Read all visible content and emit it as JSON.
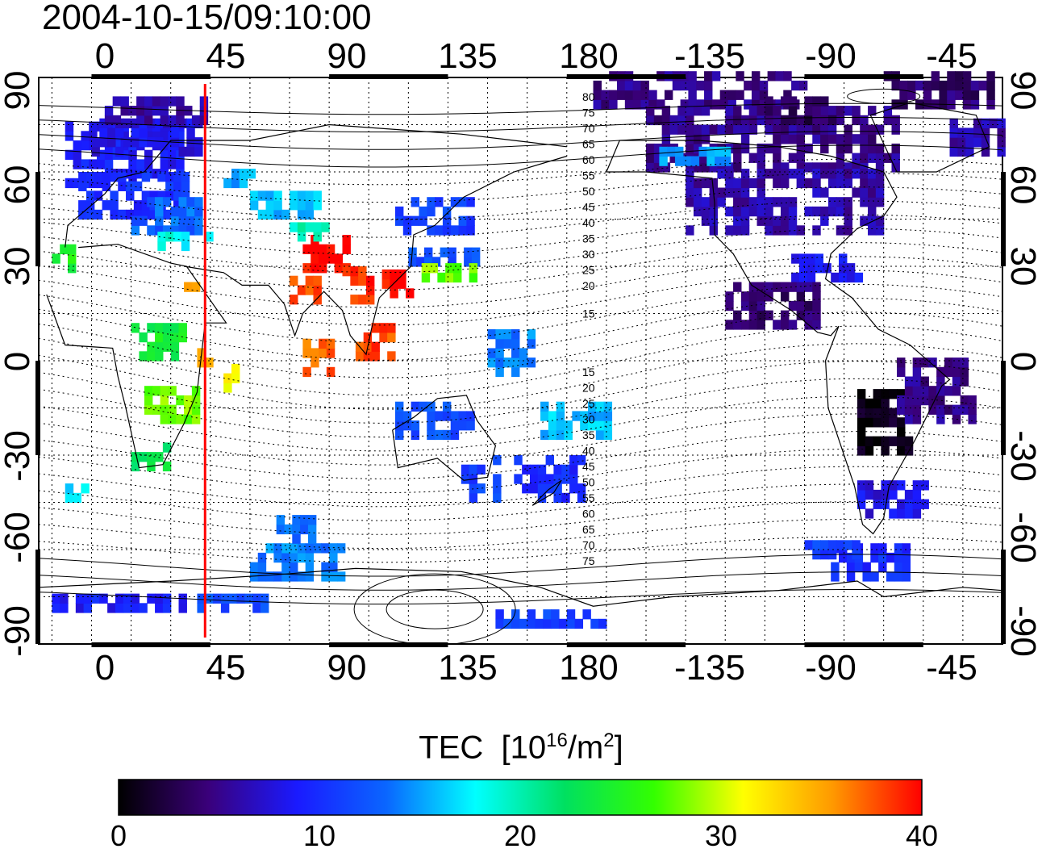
{
  "title": "2004-10-15/09:10:00",
  "x_tick_labels": [
    "0",
    "45",
    "90",
    "135",
    "180",
    "-135",
    "-90",
    "-45"
  ],
  "y_tick_labels": [
    "90",
    "60",
    "30",
    "0",
    "-30",
    "-60",
    "-90"
  ],
  "colorbar": {
    "title_prefix": "TEC",
    "title_unit_open": "[10",
    "title_unit_exp": "16",
    "title_unit_mid": "/m",
    "title_unit_exp2": "2",
    "title_unit_close": "]",
    "ticks": [
      "0",
      "10",
      "20",
      "30",
      "40"
    ],
    "range": [
      0,
      40
    ],
    "colors": [
      "#000000",
      "#3a007a",
      "#1a1aff",
      "#0a66ff",
      "#00ffff",
      "#00e060",
      "#33ff00",
      "#ffff00",
      "#ff9900",
      "#ff0000"
    ]
  },
  "marker_line": {
    "longitude": 43,
    "color": "#ff0000"
  },
  "contour_labels_north": [
    "80",
    "75",
    "70",
    "65",
    "60",
    "55",
    "50",
    "45",
    "40",
    "35",
    "30",
    "25",
    "20",
    "15"
  ],
  "contour_labels_south": [
    "15",
    "20",
    "25",
    "30",
    "35",
    "40",
    "45",
    "50",
    "55",
    "60",
    "65",
    "70",
    "75"
  ],
  "map": {
    "lon_range": [
      -20,
      345
    ],
    "lat_range": [
      -90,
      90
    ],
    "cells": [
      {
        "lon": -10,
        "lat": 55,
        "w": 45,
        "h": 20,
        "tec": 9
      },
      {
        "lon": -5,
        "lat": 45,
        "w": 40,
        "h": 15,
        "tec": 10
      },
      {
        "lon": 0,
        "lat": 65,
        "w": 40,
        "h": 10,
        "tec": 8
      },
      {
        "lon": 5,
        "lat": 75,
        "w": 40,
        "h": 8,
        "tec": 6
      },
      {
        "lon": 15,
        "lat": 40,
        "w": 25,
        "h": 10,
        "tec": 13
      },
      {
        "lon": 25,
        "lat": 35,
        "w": 20,
        "h": 5,
        "tec": 18
      },
      {
        "lon": -15,
        "lat": 28,
        "w": 8,
        "h": 8,
        "tec": 25
      },
      {
        "lon": 35,
        "lat": 22,
        "w": 6,
        "h": 6,
        "tec": 35
      },
      {
        "lon": 80,
        "lat": 28,
        "w": 16,
        "h": 10,
        "tec": 40
      },
      {
        "lon": 75,
        "lat": 18,
        "w": 10,
        "h": 8,
        "tec": 38
      },
      {
        "lon": 95,
        "lat": 18,
        "w": 10,
        "h": 10,
        "tec": 39
      },
      {
        "lon": 60,
        "lat": 45,
        "w": 25,
        "h": 8,
        "tec": 16
      },
      {
        "lon": 50,
        "lat": 55,
        "w": 15,
        "h": 5,
        "tec": 15
      },
      {
        "lon": 75,
        "lat": 38,
        "w": 15,
        "h": 5,
        "tec": 20
      },
      {
        "lon": 115,
        "lat": 40,
        "w": 30,
        "h": 12,
        "tec": 11
      },
      {
        "lon": 120,
        "lat": 30,
        "w": 25,
        "h": 6,
        "tec": 12
      },
      {
        "lon": 125,
        "lat": 25,
        "w": 20,
        "h": 4,
        "tec": 28
      },
      {
        "lon": 110,
        "lat": 20,
        "w": 12,
        "h": 8,
        "tec": 40
      },
      {
        "lon": 100,
        "lat": 0,
        "w": 15,
        "h": 10,
        "tec": 38
      },
      {
        "lon": 80,
        "lat": -5,
        "w": 10,
        "h": 10,
        "tec": 37
      },
      {
        "lon": 150,
        "lat": -5,
        "w": 20,
        "h": 15,
        "tec": 14
      },
      {
        "lon": 170,
        "lat": -25,
        "w": 25,
        "h": 10,
        "tec": 16
      },
      {
        "lon": 115,
        "lat": -25,
        "w": 30,
        "h": 12,
        "tec": 12
      },
      {
        "lon": 140,
        "lat": -45,
        "w": 15,
        "h": 15,
        "tec": 11
      },
      {
        "lon": 160,
        "lat": -45,
        "w": 25,
        "h": 15,
        "tec": 10
      },
      {
        "lon": 15,
        "lat": 0,
        "w": 20,
        "h": 10,
        "tec": 24
      },
      {
        "lon": 20,
        "lat": -20,
        "w": 20,
        "h": 10,
        "tec": 28
      },
      {
        "lon": 15,
        "lat": -35,
        "w": 15,
        "h": 8,
        "tec": 23
      },
      {
        "lon": -10,
        "lat": -45,
        "w": 8,
        "h": 6,
        "tec": 17
      },
      {
        "lon": 40,
        "lat": -2,
        "w": 6,
        "h": 6,
        "tec": 35
      },
      {
        "lon": 50,
        "lat": -10,
        "w": 5,
        "h": 8,
        "tec": 32
      },
      {
        "lon": 60,
        "lat": -70,
        "w": 35,
        "h": 10,
        "tec": 14
      },
      {
        "lon": 40,
        "lat": -80,
        "w": 25,
        "h": 6,
        "tec": 12
      },
      {
        "lon": -15,
        "lat": -80,
        "w": 50,
        "h": 6,
        "tec": 9
      },
      {
        "lon": 150,
        "lat": -85,
        "w": 45,
        "h": 6,
        "tec": 11
      },
      {
        "lon": 70,
        "lat": -58,
        "w": 15,
        "h": 8,
        "tec": 13
      },
      {
        "lon": 190,
        "lat": 80,
        "w": 80,
        "h": 10,
        "tec": 5
      },
      {
        "lon": 210,
        "lat": 60,
        "w": 95,
        "h": 20,
        "tec": 5
      },
      {
        "lon": 225,
        "lat": 40,
        "w": 75,
        "h": 20,
        "tec": 6
      },
      {
        "lon": 265,
        "lat": 25,
        "w": 25,
        "h": 8,
        "tec": 9
      },
      {
        "lon": 215,
        "lat": 62,
        "w": 25,
        "h": 4,
        "tec": 15
      },
      {
        "lon": 240,
        "lat": 10,
        "w": 35,
        "h": 15,
        "tec": 4
      },
      {
        "lon": 290,
        "lat": -30,
        "w": 20,
        "h": 20,
        "tec": 1
      },
      {
        "lon": 305,
        "lat": -20,
        "w": 30,
        "h": 20,
        "tec": 5
      },
      {
        "lon": 290,
        "lat": -50,
        "w": 25,
        "h": 10,
        "tec": 8
      },
      {
        "lon": 280,
        "lat": -70,
        "w": 30,
        "h": 10,
        "tec": 10
      },
      {
        "lon": 270,
        "lat": -63,
        "w": 20,
        "h": 5,
        "tec": 11
      },
      {
        "lon": 300,
        "lat": 80,
        "w": 40,
        "h": 10,
        "tec": 4
      },
      {
        "lon": 325,
        "lat": 65,
        "w": 20,
        "h": 10,
        "tec": 6
      },
      {
        "lon": 255,
        "lat": 75,
        "w": 25,
        "h": 8,
        "tec": 3
      }
    ]
  }
}
